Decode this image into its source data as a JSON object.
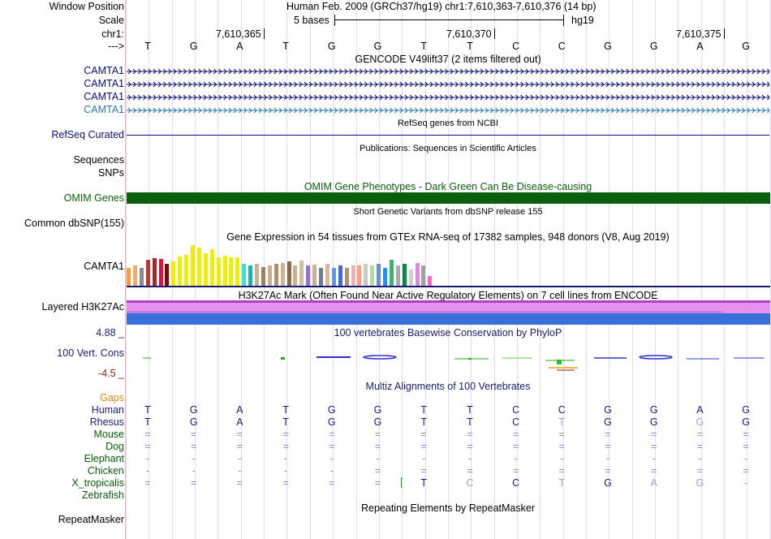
{
  "header": {
    "window_position_label": "Window Position",
    "window_position_text": "Human Feb. 2009 (GRCh37/hg19)   chr1:7,610,363-7,610,376 (14 bp)",
    "scale_label": "Scale",
    "scale_text": "5 bases",
    "assembly": "hg19",
    "chrom_label": "chr1:",
    "strand_label": "--->",
    "positions": [
      "7,610,365",
      "7,610,370",
      "7,610,375"
    ],
    "bases": [
      "T",
      "G",
      "A",
      "T",
      "G",
      "G",
      "T",
      "T",
      "C",
      "C",
      "G",
      "G",
      "A",
      "G"
    ]
  },
  "tracks": {
    "gencode_title": "GENCODE V49lift37 (2 items filtered out)",
    "camta1_rows": [
      "CAMTA1",
      "CAMTA1",
      "CAMTA1",
      "CAMTA1"
    ],
    "refseq_label": "RefSeq Curated",
    "refseq_title": "RefSeq genes from NCBI",
    "pubs_title": "Publications: Sequences in Scientific Articles",
    "sequences_label": "Sequences",
    "snps_label": "SNPs",
    "omim_title": "OMIM Gene Phenotypes - Dark Green Can Be Disease-causing",
    "omim_label": "OMIM Genes",
    "dbsnp_title": "Short Genetic Variants from dbSNP release 155",
    "dbsnp_label": "Common dbSNP(155)",
    "gtex_title": "Gene Expression in 54 tissues from GTEx RNA-seq of 17382 samples, 948 donors (V8, Aug 2019)",
    "gtex_label": "CAMTA1",
    "h3k27_title": "H3K27Ac Mark (Often Found Near Active Regulatory Elements) on 7 cell lines from ENCODE",
    "h3k27_label": "Layered H3K27Ac",
    "cons_max": "4.88 _",
    "cons_title": "100 vertebrates Basewise Conservation by PhyloP",
    "cons_label": "100 Vert. Cons",
    "cons_min": "-4.5 _",
    "multiz_title": "Multiz Alignments of 100 Vertebrates",
    "repeat_title": "Repeating Elements by RepeatMasker",
    "repeat_label": "RepeatMasker"
  },
  "alignment": {
    "gaps_label": "Gaps",
    "species": [
      {
        "name": "Human",
        "color": "#1a1a7a",
        "bases": [
          "T",
          "G",
          "A",
          "T",
          "G",
          "G",
          "T",
          "T",
          "C",
          "C",
          "G",
          "G",
          "A",
          "G"
        ]
      },
      {
        "name": "Rhesus",
        "color": "#1a1a7a",
        "bases": [
          "T",
          "G",
          "A",
          "T",
          "G",
          "G",
          "T",
          "T",
          "C",
          "T",
          "G",
          "G",
          "G",
          "G"
        ]
      },
      {
        "name": "Mouse",
        "color": "#0a5a0a",
        "bases": [
          "=",
          "=",
          "=",
          "=",
          "=",
          "=",
          "=",
          "=",
          "=",
          "=",
          "=",
          "=",
          "=",
          "="
        ]
      },
      {
        "name": "Dog",
        "color": "#0a5a0a",
        "bases": [
          "=",
          "=",
          "=",
          "=",
          "=",
          "=",
          "=",
          "=",
          "=",
          "=",
          "=",
          "=",
          "=",
          "="
        ]
      },
      {
        "name": "Elephant",
        "color": "#0a5a0a",
        "bases": [
          "-",
          "-",
          "-",
          "-",
          "-",
          "-",
          "-",
          "-",
          "-",
          "-",
          "-",
          "-",
          "-",
          "-"
        ]
      },
      {
        "name": "Chicken",
        "color": "#0a5a0a",
        "bases": [
          "-",
          "-",
          "-",
          "-",
          "-",
          "=",
          "=",
          "=",
          "=",
          "=",
          "=",
          "=",
          "=",
          "="
        ]
      },
      {
        "name": "X_tropicalis",
        "color": "#0a5a0a",
        "bases": [
          "=",
          "=",
          "=",
          "=",
          "=",
          "=",
          "T",
          "C",
          "C",
          "T",
          "G",
          "A",
          "G",
          "-"
        ]
      },
      {
        "name": "Zebrafish",
        "color": "#0a5a0a",
        "bases": [
          "",
          "",
          "",
          "",
          "",
          "",
          "",
          "",
          "",
          "",
          "",
          "",
          "",
          ""
        ]
      }
    ]
  },
  "gtex_chart": {
    "type": "bar",
    "values": [
      22,
      25,
      22,
      32,
      34,
      33,
      27,
      30,
      36,
      38,
      50,
      47,
      40,
      45,
      35,
      37,
      35,
      35,
      27,
      25,
      27,
      23,
      25,
      27,
      28,
      30,
      25,
      31,
      25,
      26,
      22,
      27,
      22,
      25,
      22,
      25,
      25,
      27,
      25,
      27,
      22,
      32,
      25,
      27,
      20,
      28,
      25,
      12
    ],
    "colors": [
      "#ff9a3c",
      "#e8b070",
      "#8a8a8a",
      "#c0392b",
      "#a52a2a",
      "#dc143c",
      "#8b0000",
      "#eeee00",
      "#eeee00",
      "#eeee00",
      "#eeee00",
      "#eeee00",
      "#eeee00",
      "#eeee00",
      "#eeee00",
      "#eeee00",
      "#eeee00",
      "#eeee00",
      "#40e0d0",
      "#20b2aa",
      "#c8b090",
      "#a08060",
      "#c8b090",
      "#b09070",
      "#d2b48c",
      "#8b6c4a",
      "#c8b090",
      "#d0c0a0",
      "#9370db",
      "#c8b090",
      "#708090",
      "#dcb898",
      "#6495ed",
      "#4169e1",
      "#b09070",
      "#eeb4b4",
      "#ffa07a",
      "#c8c8c8",
      "#b0e0a0",
      "#6b8ed6",
      "#1e90ff",
      "#3cb371",
      "#aaaaaa",
      "#008b45",
      "#cfcfcf",
      "#dd88dd",
      "#a0a0a0",
      "#ff66cc"
    ]
  },
  "colors": {
    "omim": "#0b5e0b",
    "navy": "#1b1b6e",
    "gencode": "#0c0c78",
    "camta_light": "#2a7aa8"
  }
}
